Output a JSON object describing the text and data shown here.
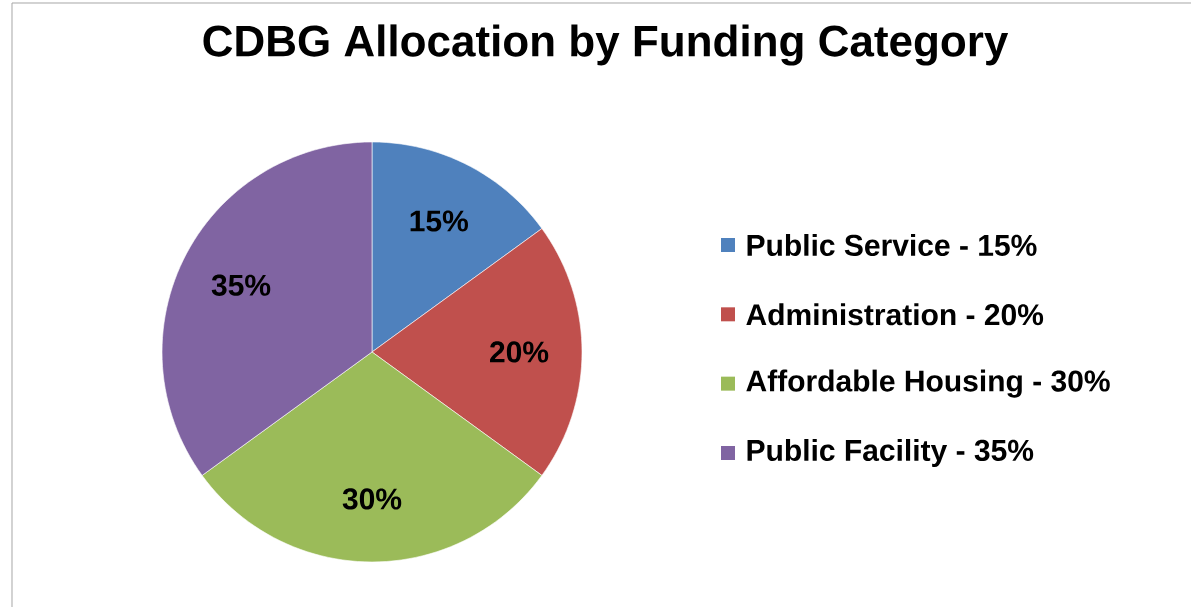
{
  "chart_data": {
    "type": "pie",
    "title": "CDBG Allocation by Funding Category",
    "categories": [
      "Public Service - 15%",
      "Administration - 20%",
      "Affordable Housing - 30%",
      "Public Facility - 35%"
    ],
    "values": [
      15,
      20,
      30,
      35
    ],
    "value_labels": [
      "15%",
      "20%",
      "30%",
      "35%"
    ],
    "colors": [
      "#4f81bd",
      "#c0504d",
      "#9bbb59",
      "#8064a2"
    ],
    "legend": "right"
  }
}
